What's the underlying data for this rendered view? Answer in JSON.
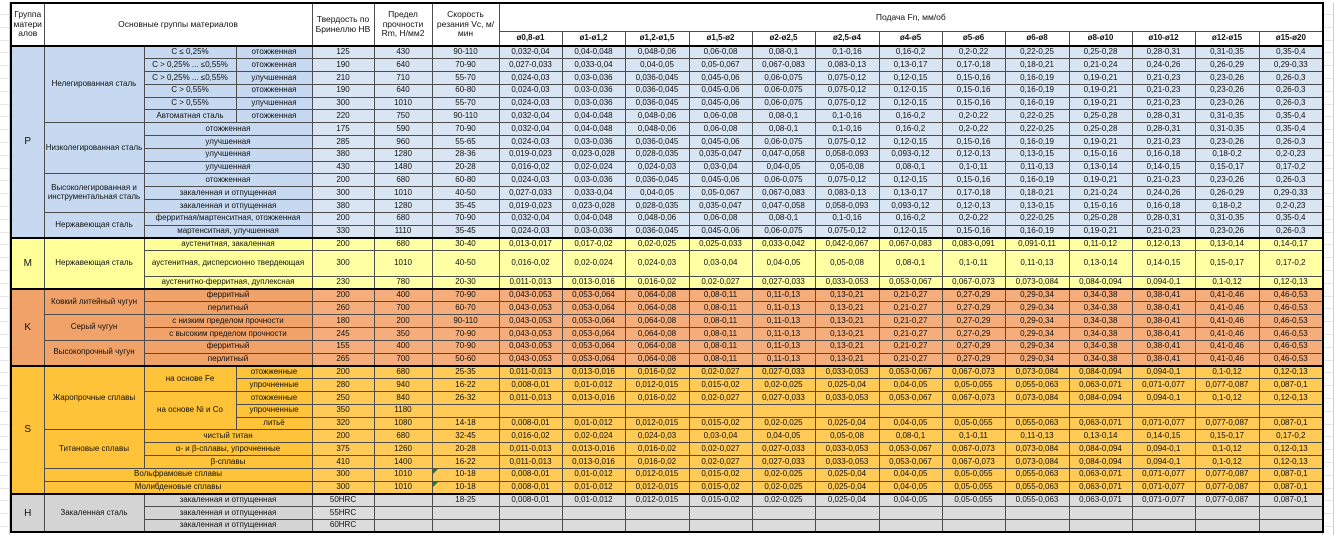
{
  "header": {
    "col_group": "Группа материалов",
    "col_materials": "Основные группы материалов",
    "col_hardness": "Твердость по Бринеллю HB",
    "col_strength": "Предел прочности Rm, Н/мм2",
    "col_speed": "Скорость резания Vc, м/мин",
    "col_feed": "Подача Fn, мм/об",
    "diameters": [
      "ø0,8-ø1",
      "ø1-ø1,2",
      "ø1,2-ø1,5",
      "ø1,5-ø2",
      "ø2-ø2,5",
      "ø2,5-ø4",
      "ø4-ø5",
      "ø5-ø6",
      "ø6-ø8",
      "ø8-ø10",
      "ø10-ø12",
      "ø12-ø15",
      "ø15-ø20"
    ]
  },
  "colors": {
    "section_P": "#c6d9f0",
    "section_M": "#ffff99",
    "section_K": "#f0a269",
    "section_S": "#ffc339",
    "section_H": "#d4d4d4",
    "grid": "#4d4d4d",
    "comment_marker": "#1f7a2d"
  },
  "feed_patterns": {
    "F1": [
      "0,032-0,04",
      "0,04-0,048",
      "0,048-0,06",
      "0,06-0,08",
      "0,08-0,1",
      "0,1-0,16",
      "0,16-0,2",
      "0,2-0,22",
      "0,22-0,25",
      "0,25-0,28",
      "0,28-0,31",
      "0,31-0,35",
      "0,35-0,4"
    ],
    "F2": [
      "0,027-0,033",
      "0,033-0,04",
      "0,04-0,05",
      "0,05-0,067",
      "0,067-0,083",
      "0,083-0,13",
      "0,13-0,17",
      "0,17-0,18",
      "0,18-0,21",
      "0,21-0,24",
      "0,24-0,26",
      "0,26-0,29",
      "0,29-0,33"
    ],
    "F3": [
      "0,024-0,03",
      "0,03-0,036",
      "0,036-0,045",
      "0,045-0,06",
      "0,06-0,075",
      "0,075-0,12",
      "0,12-0,15",
      "0,15-0,16",
      "0,16-0,19",
      "0,19-0,21",
      "0,21-0,23",
      "0,23-0,26",
      "0,26-0,3"
    ],
    "F4": [
      "0,019-0,023",
      "0,023-0,028",
      "0,028-0,035",
      "0,035-0,047",
      "0,047-0,058",
      "0,058-0,093",
      "0,093-0,12",
      "0,12-0,13",
      "0,13-0,15",
      "0,15-0,16",
      "0,16-0,18",
      "0,18-0,2",
      "0,2-0,23"
    ],
    "F5": [
      "0,016-0,02",
      "0,02-0,024",
      "0,024-0,03",
      "0,03-0,04",
      "0,04-0,05",
      "0,05-0,08",
      "0,08-0,1",
      "0,1-0,11",
      "0,11-0,13",
      "0,13-0,14",
      "0,14-0,15",
      "0,15-0,17",
      "0,17-0,2"
    ],
    "F6": [
      "0,013-0,017",
      "0,017-0,02",
      "0,02-0,025",
      "0,025-0,033",
      "0,033-0,042",
      "0,042-0,067",
      "0,067-0,083",
      "0,083-0,091",
      "0,091-0,11",
      "0,11-0,12",
      "0,12-0,13",
      "0,13-0,14",
      "0,14-0,17"
    ],
    "F7": [
      "0,011-0,013",
      "0,013-0,016",
      "0,016-0,02",
      "0,02-0,027",
      "0,027-0,033",
      "0,033-0,053",
      "0,053-0,067",
      "0,067-0,073",
      "0,073-0,084",
      "0,084-0,094",
      "0,094-0,1",
      "0,1-0,12",
      "0,12-0,13"
    ],
    "F8": [
      "0,043-0,053",
      "0,053-0,064",
      "0,064-0,08",
      "0,08-0,11",
      "0,11-0,13",
      "0,13-0,21",
      "0,21-0,27",
      "0,27-0,29",
      "0,29-0,34",
      "0,34-0,38",
      "0,38-0,41",
      "0,41-0,46",
      "0,46-0,53"
    ],
    "F9": [
      "0,008-0,01",
      "0,01-0,012",
      "0,012-0,015",
      "0,015-0,02",
      "0,02-0,025",
      "0,025-0,04",
      "0,04-0,05",
      "0,05-0,055",
      "0,055-0,063",
      "0,063-0,071",
      "0,071-0,077",
      "0,077-0,087",
      "0,087-0,1"
    ],
    "F0": [
      "",
      "",
      "",
      "",
      "",
      "",
      "",
      "",
      "",
      "",
      "",
      "",
      ""
    ]
  },
  "rows": [
    {
      "sec": "p",
      "left": [
        {
          "t": "P",
          "rs": 15,
          "g": 1
        },
        {
          "t": "Нелегированная сталь",
          "rs": 6
        },
        {
          "t": "C ≤ 0,25%"
        },
        {
          "t": "отожженная"
        }
      ],
      "hb": "125",
      "rm": "430",
      "vc": "90-110",
      "f": "F1"
    },
    {
      "sec": "p",
      "left": [
        {
          "t": "C > 0,25% ... ≤0,55%"
        },
        {
          "t": "отожженная"
        }
      ],
      "hb": "190",
      "rm": "640",
      "vc": "70-90",
      "f": "F2"
    },
    {
      "sec": "p",
      "left": [
        {
          "t": "C > 0,25% ... ≤0,55%"
        },
        {
          "t": "улучшенная"
        }
      ],
      "hb": "210",
      "rm": "710",
      "vc": "55-70",
      "f": "F3"
    },
    {
      "sec": "p",
      "left": [
        {
          "t": "C > 0,55%"
        },
        {
          "t": "отожженная"
        }
      ],
      "hb": "190",
      "rm": "640",
      "vc": "60-80",
      "f": "F3"
    },
    {
      "sec": "p",
      "left": [
        {
          "t": "C > 0,55%"
        },
        {
          "t": "улучшенная"
        }
      ],
      "hb": "300",
      "rm": "1010",
      "vc": "55-70",
      "f": "F3"
    },
    {
      "sec": "p",
      "left": [
        {
          "t": "Автоматная сталь"
        },
        {
          "t": "отожженная"
        }
      ],
      "hb": "220",
      "rm": "750",
      "vc": "90-110",
      "f": "F1"
    },
    {
      "sec": "p",
      "left": [
        {
          "t": "Низколегированная сталь",
          "rs": 4
        },
        {
          "t": "отожженная",
          "cs": 2
        }
      ],
      "hb": "175",
      "rm": "590",
      "vc": "70-90",
      "f": "F1"
    },
    {
      "sec": "p",
      "left": [
        {
          "t": "улучшенная",
          "cs": 2
        }
      ],
      "hb": "285",
      "rm": "960",
      "vc": "55-65",
      "f": "F3"
    },
    {
      "sec": "p",
      "left": [
        {
          "t": "улучшенная",
          "cs": 2
        }
      ],
      "hb": "380",
      "rm": "1280",
      "vc": "28-36",
      "f": "F4"
    },
    {
      "sec": "p",
      "left": [
        {
          "t": "улучшенная",
          "cs": 2
        }
      ],
      "hb": "430",
      "rm": "1480",
      "vc": "20-28",
      "f": "F5"
    },
    {
      "sec": "p",
      "left": [
        {
          "t": "Высоколегированная и инструментальная сталь",
          "rs": 3
        },
        {
          "t": "отожженная",
          "cs": 2
        }
      ],
      "hb": "200",
      "rm": "680",
      "vc": "60-80",
      "f": "F3"
    },
    {
      "sec": "p",
      "left": [
        {
          "t": "закаленная и отпущенная",
          "cs": 2
        }
      ],
      "hb": "300",
      "rm": "1010",
      "vc": "40-50",
      "f": "F2"
    },
    {
      "sec": "p",
      "left": [
        {
          "t": "закаленная и отпущенная",
          "cs": 2
        }
      ],
      "hb": "380",
      "rm": "1280",
      "vc": "35-45",
      "f": "F4"
    },
    {
      "sec": "p",
      "left": [
        {
          "t": "Нержавеющая сталь",
          "rs": 2
        },
        {
          "t": "ферритная/мартенситная, отожженная",
          "cs": 2
        }
      ],
      "hb": "200",
      "rm": "680",
      "vc": "70-90",
      "f": "F1"
    },
    {
      "sec": "p",
      "left": [
        {
          "t": "мартенситная, улучшенная",
          "cs": 2
        }
      ],
      "hb": "330",
      "rm": "1110",
      "vc": "35-45",
      "f": "F3"
    },
    {
      "sec": "m",
      "start": 1,
      "left": [
        {
          "t": "M",
          "rs": 3,
          "g": 1
        },
        {
          "t": "Нержавеющая сталь",
          "rs": 3
        },
        {
          "t": "аустенитная, закаленная",
          "cs": 2
        }
      ],
      "hb": "200",
      "rm": "680",
      "vc": "30-40",
      "f": "F6"
    },
    {
      "sec": "m",
      "tall": 1,
      "left": [
        {
          "t": "аустенитная, дисперсионно твердеющая",
          "cs": 2
        }
      ],
      "hb": "300",
      "rm": "1010",
      "vc": "40-50",
      "f": "F5"
    },
    {
      "sec": "m",
      "left": [
        {
          "t": "аустенитно-ферритная, дуплексная",
          "cs": 2
        }
      ],
      "hb": "230",
      "rm": "780",
      "vc": "20-30",
      "f": "F7"
    },
    {
      "sec": "k",
      "start": 1,
      "left": [
        {
          "t": "K",
          "rs": 6,
          "g": 1
        },
        {
          "t": "Ковкий литейный чугун",
          "rs": 2
        },
        {
          "t": "ферритный",
          "cs": 2
        }
      ],
      "hb": "200",
      "rm": "400",
      "vc": "70-90",
      "f": "F8"
    },
    {
      "sec": "k",
      "left": [
        {
          "t": "перлитный",
          "cs": 2
        }
      ],
      "hb": "260",
      "rm": "700",
      "vc": "60-70",
      "f": "F8"
    },
    {
      "sec": "k",
      "left": [
        {
          "t": "Серый чугун",
          "rs": 2
        },
        {
          "t": "с низким пределом прочности",
          "cs": 2
        }
      ],
      "hb": "180",
      "rm": "200",
      "vc": "90-110",
      "f": "F8"
    },
    {
      "sec": "k",
      "left": [
        {
          "t": "с высоким пределом прочности",
          "cs": 2
        }
      ],
      "hb": "245",
      "rm": "350",
      "vc": "70-90",
      "f": "F8"
    },
    {
      "sec": "k",
      "left": [
        {
          "t": "Высокопрочный чугун",
          "rs": 2
        },
        {
          "t": "ферритный",
          "cs": 2
        }
      ],
      "hb": "155",
      "rm": "400",
      "vc": "70-90",
      "f": "F8"
    },
    {
      "sec": "k",
      "left": [
        {
          "t": "перлитный",
          "cs": 2
        }
      ],
      "hb": "265",
      "rm": "700",
      "vc": "50-60",
      "f": "F8"
    },
    {
      "sec": "s",
      "start": 1,
      "left": [
        {
          "t": "S",
          "rs": 10,
          "g": 1
        },
        {
          "t": "Жаропрочные сплавы",
          "rs": 5
        },
        {
          "t": "на основе Fe",
          "rs": 2
        },
        {
          "t": "отожженные"
        }
      ],
      "hb": "200",
      "rm": "680",
      "vc": "25-35",
      "f": "F7"
    },
    {
      "sec": "s",
      "left": [
        {
          "t": "упрочненные"
        }
      ],
      "hb": "280",
      "rm": "940",
      "vc": "16-22",
      "f": "F9"
    },
    {
      "sec": "s",
      "left": [
        {
          "t": "на основе Ni и Co",
          "rs": 3
        },
        {
          "t": "отожженные"
        }
      ],
      "hb": "250",
      "rm": "840",
      "vc": "26-32",
      "f": "F7"
    },
    {
      "sec": "s",
      "left": [
        {
          "t": "упрочненные"
        }
      ],
      "hb": "350",
      "rm": "1180",
      "vc": "",
      "f": "F0"
    },
    {
      "sec": "s",
      "left": [
        {
          "t": "литьё"
        }
      ],
      "hb": "320",
      "rm": "1080",
      "vc": "14-18",
      "f": "F9"
    },
    {
      "sec": "s",
      "left": [
        {
          "t": "Титановые сплавы",
          "rs": 3
        },
        {
          "t": "чистый титан",
          "cs": 2
        }
      ],
      "hb": "200",
      "rm": "680",
      "vc": "32-45",
      "f": "F5"
    },
    {
      "sec": "s",
      "left": [
        {
          "t": "α- и β-сплавы, упрочненные",
          "cs": 2
        }
      ],
      "hb": "375",
      "rm": "1260",
      "vc": "20-28",
      "f": "F7"
    },
    {
      "sec": "s",
      "left": [
        {
          "t": "β-сплавы",
          "cs": 2
        }
      ],
      "hb": "410",
      "rm": "1400",
      "vc": "16-22",
      "f": "F7"
    },
    {
      "sec": "s",
      "left": [
        {
          "t": "Вольфрамовые сплавы",
          "cs": 3
        }
      ],
      "hb": "300",
      "rm": "1010",
      "vc": "10-18",
      "f": "F9",
      "note": 1
    },
    {
      "sec": "s",
      "left": [
        {
          "t": "Молибденовые сплавы",
          "cs": 3
        }
      ],
      "hb": "300",
      "rm": "1010",
      "vc": "10-18",
      "f": "F9",
      "note": 1
    },
    {
      "sec": "h",
      "start": 1,
      "left": [
        {
          "t": "H",
          "rs": 3,
          "g": 1
        },
        {
          "t": "Закаленная сталь",
          "rs": 3
        },
        {
          "t": "закаленная и отпущенная",
          "cs": 2
        }
      ],
      "hb": "50HRC",
      "rm": "",
      "vc": "18-25",
      "f": "F9"
    },
    {
      "sec": "h",
      "left": [
        {
          "t": "закаленная и отпущенная",
          "cs": 2
        }
      ],
      "hb": "55HRC",
      "rm": "",
      "vc": "",
      "f": "F0"
    },
    {
      "sec": "h",
      "left": [
        {
          "t": "закаленная и отпущенная",
          "cs": 2
        }
      ],
      "hb": "60HRC",
      "rm": "",
      "vc": "",
      "f": "F0"
    }
  ]
}
